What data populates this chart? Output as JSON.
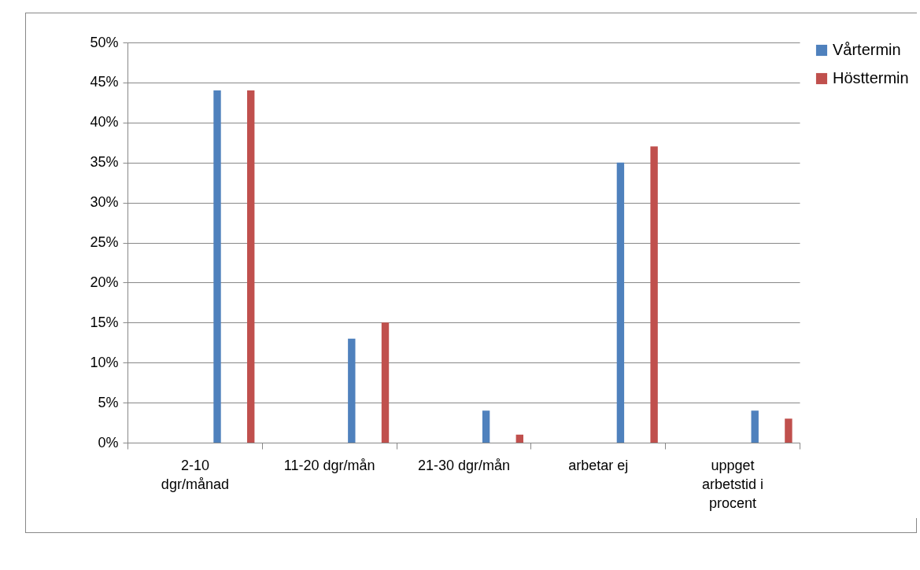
{
  "chart_data": {
    "type": "bar",
    "categories": [
      "2-10 dgr/månad",
      "11-20 dgr/mån",
      "21-30 dgr/mån",
      "arbetar ej",
      "uppget arbetstid i procent"
    ],
    "series": [
      {
        "name": "Vårtermin",
        "color": "#4f81bd",
        "values": [
          44,
          13,
          4,
          35,
          4
        ]
      },
      {
        "name": "Hösttermin",
        "color": "#c0504d",
        "values": [
          44,
          15,
          1,
          37,
          3
        ]
      }
    ],
    "ylim": [
      0,
      50
    ],
    "yticks": [
      {
        "value": 0,
        "label": "0%"
      },
      {
        "value": 5,
        "label": "5%"
      },
      {
        "value": 10,
        "label": "10%"
      },
      {
        "value": 15,
        "label": "15%"
      },
      {
        "value": 20,
        "label": "20%"
      },
      {
        "value": 25,
        "label": "25%"
      },
      {
        "value": 30,
        "label": "30%"
      },
      {
        "value": 35,
        "label": "35%"
      },
      {
        "value": 40,
        "label": "40%"
      },
      {
        "value": 45,
        "label": "45%"
      },
      {
        "value": 50,
        "label": "50%"
      }
    ],
    "grid": "y",
    "legend": "right"
  }
}
